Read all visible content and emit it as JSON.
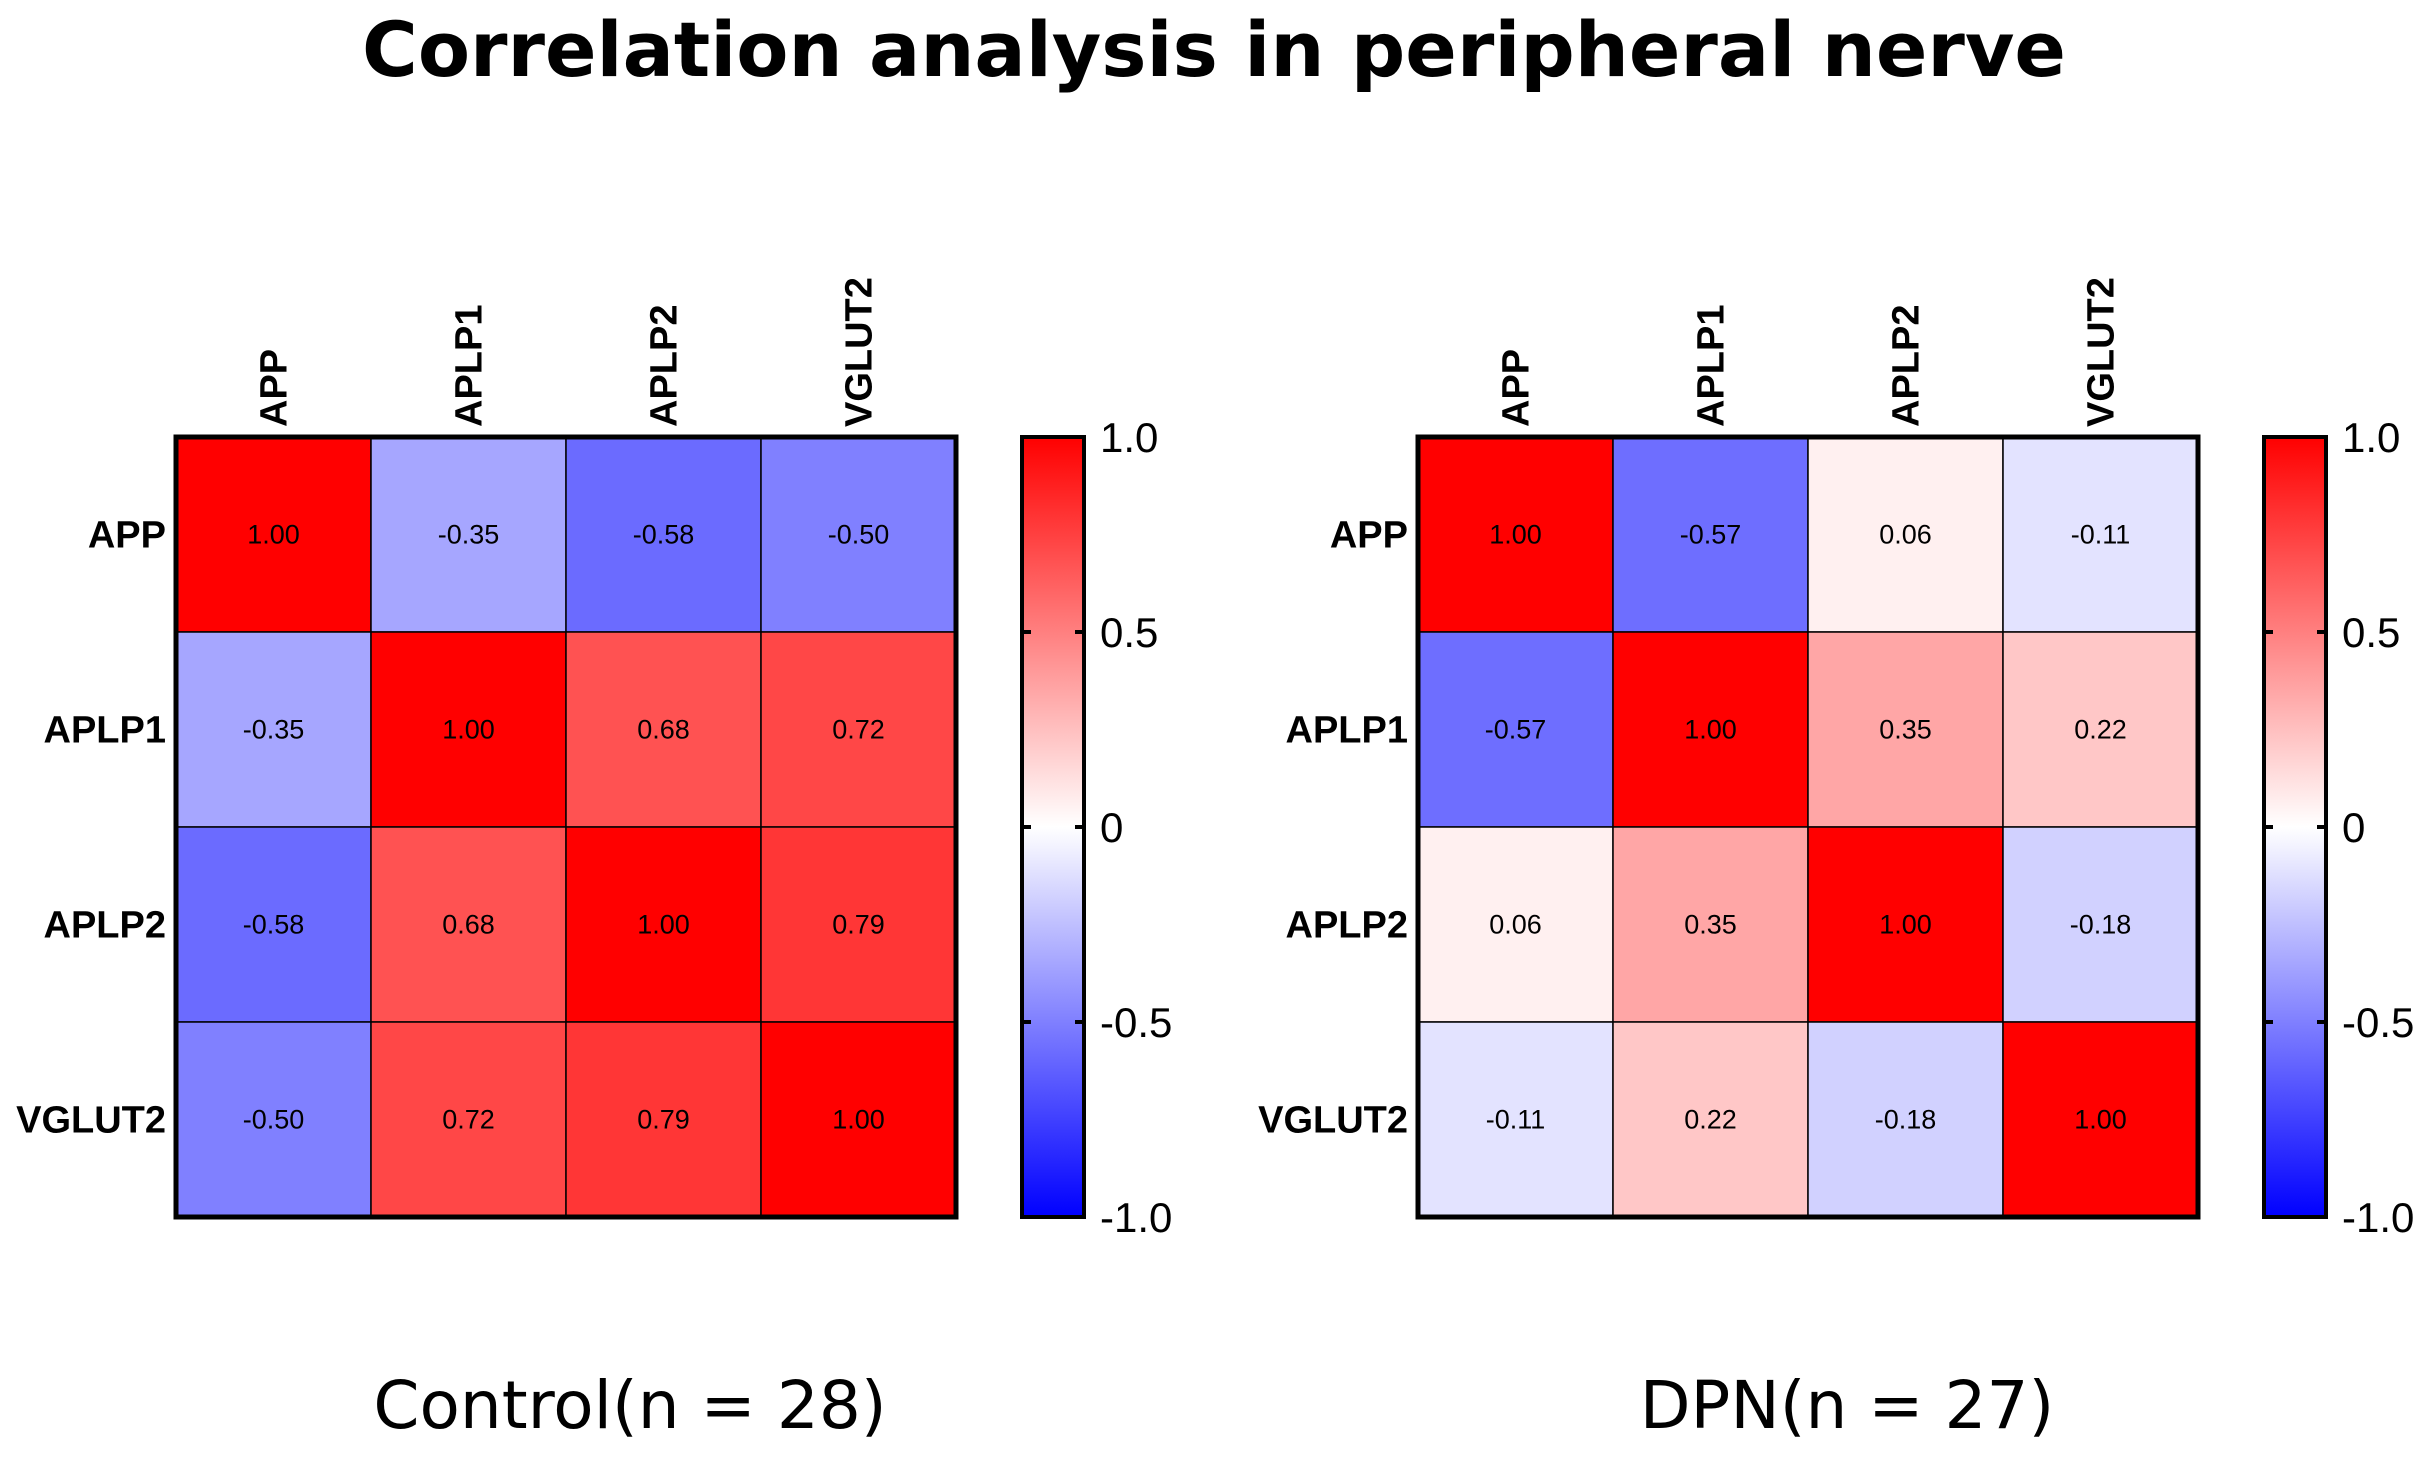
{
  "title": "Correlation analysis in peripheral nerve",
  "chart_data": [
    {
      "type": "heatmap",
      "caption": "Control(n = 28)",
      "labels": [
        "APP",
        "APLP1",
        "APLP2",
        "VGLUT2"
      ],
      "matrix": [
        [
          1.0,
          -0.35,
          -0.58,
          -0.5
        ],
        [
          -0.35,
          1.0,
          0.68,
          0.72
        ],
        [
          -0.58,
          0.68,
          1.0,
          0.79
        ],
        [
          -0.5,
          0.72,
          0.79,
          1.0
        ]
      ],
      "cell_labels": [
        [
          "1.00",
          "-0.35",
          "-0.58",
          "-0.50"
        ],
        [
          "-0.35",
          "1.00",
          "0.68",
          "0.72"
        ],
        [
          "-0.58",
          "0.68",
          "1.00",
          "0.79"
        ],
        [
          "-0.50",
          "0.72",
          "0.79",
          "1.00"
        ]
      ],
      "colorbar": {
        "range": [
          -1.0,
          1.0
        ],
        "ticks": [
          1.0,
          0.5,
          0,
          -0.5,
          -1.0
        ],
        "tick_labels": [
          "1.0",
          "0.5",
          "0",
          "-0.5",
          "-1.0"
        ]
      }
    },
    {
      "type": "heatmap",
      "caption": "DPN(n = 27)",
      "labels": [
        "APP",
        "APLP1",
        "APLP2",
        "VGLUT2"
      ],
      "matrix": [
        [
          1.0,
          -0.57,
          0.06,
          -0.11
        ],
        [
          -0.57,
          1.0,
          0.35,
          0.22
        ],
        [
          0.06,
          0.35,
          1.0,
          -0.18
        ],
        [
          -0.11,
          0.22,
          -0.18,
          1.0
        ]
      ],
      "cell_labels": [
        [
          "1.00",
          "-0.57",
          "0.06",
          "-0.11"
        ],
        [
          "-0.57",
          "1.00",
          "0.35",
          "0.22"
        ],
        [
          "0.06",
          "0.35",
          "1.00",
          "-0.18"
        ],
        [
          "-0.11",
          "0.22",
          "-0.18",
          "1.00"
        ]
      ],
      "colorbar": {
        "range": [
          -1.0,
          1.0
        ],
        "ticks": [
          1.0,
          0.5,
          0,
          -0.5,
          -1.0
        ],
        "tick_labels": [
          "1.0",
          "0.5",
          "0",
          "-0.5",
          "-1.0"
        ]
      }
    }
  ],
  "colors": {
    "positive": "#ff0000",
    "neutral": "#ffffff",
    "negative": "#0000ff",
    "grid": "#000000"
  }
}
